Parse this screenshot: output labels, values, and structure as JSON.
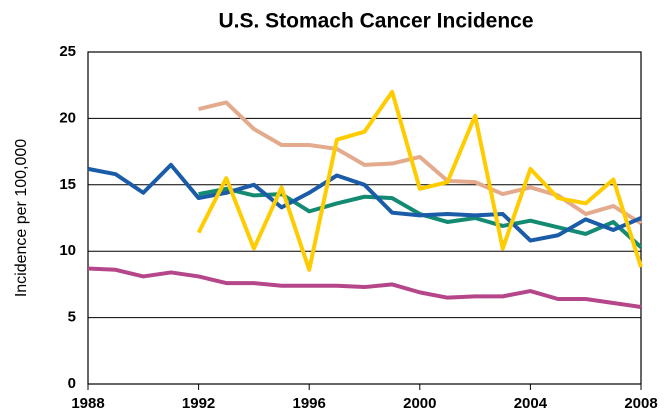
{
  "chart_data": {
    "type": "line",
    "title": "U.S. Stomach Cancer Incidence",
    "y_label": "Incidence per 100,000",
    "x": [
      1988,
      1989,
      1990,
      1991,
      1992,
      1993,
      1994,
      1995,
      1996,
      1997,
      1998,
      1999,
      2000,
      2001,
      2002,
      2003,
      2004,
      2005,
      2006,
      2007,
      2008
    ],
    "xlim": [
      1988,
      2008
    ],
    "xticks": [
      1988,
      1992,
      1996,
      2000,
      2004,
      2008
    ],
    "ylim": [
      0,
      25
    ],
    "yticks": [
      0,
      5,
      10,
      15,
      20,
      25
    ],
    "grid": true,
    "series": [
      {
        "color": "#e4aa8e",
        "values": [
          null,
          null,
          null,
          null,
          20.7,
          21.2,
          19.2,
          18.0,
          18.0,
          17.7,
          16.5,
          16.6,
          17.1,
          15.3,
          15.2,
          14.3,
          14.8,
          14.2,
          12.8,
          13.4,
          12.1
        ]
      },
      {
        "color": "#138a72",
        "values": [
          null,
          null,
          null,
          null,
          14.3,
          14.7,
          14.2,
          14.3,
          13.0,
          13.6,
          14.1,
          14.0,
          12.8,
          12.2,
          12.5,
          11.9,
          12.3,
          11.8,
          11.3,
          12.2,
          10.3
        ]
      },
      {
        "color": "#1a5ca8",
        "values": [
          16.2,
          15.8,
          14.4,
          16.5,
          14.0,
          14.4,
          15.0,
          13.3,
          14.4,
          15.7,
          15.0,
          12.9,
          12.7,
          12.8,
          12.7,
          12.8,
          10.8,
          11.2,
          12.4,
          11.6,
          12.5
        ]
      },
      {
        "color": "#ffcc00",
        "values": [
          null,
          null,
          null,
          null,
          11.4,
          15.5,
          10.2,
          14.8,
          8.6,
          18.4,
          19.0,
          22.0,
          14.7,
          15.2,
          20.2,
          10.2,
          16.2,
          14.0,
          13.6,
          15.4,
          8.8
        ]
      },
      {
        "color": "#b5468a",
        "values": [
          8.7,
          8.6,
          8.1,
          8.4,
          8.1,
          7.6,
          7.6,
          7.4,
          7.4,
          7.4,
          7.3,
          7.5,
          6.9,
          6.5,
          6.6,
          6.6,
          7.0,
          6.4,
          6.4,
          6.1,
          5.8
        ]
      }
    ]
  }
}
